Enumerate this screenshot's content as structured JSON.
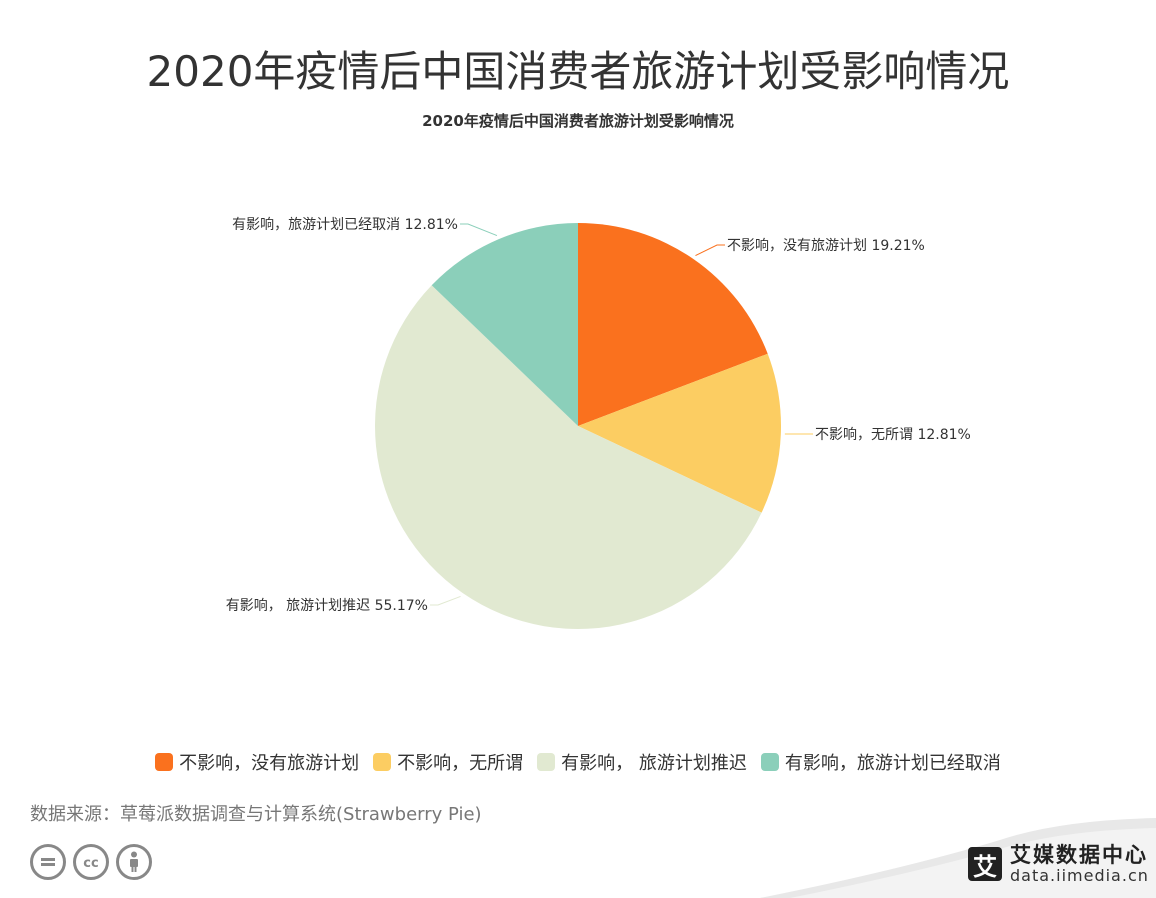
{
  "page": {
    "title": "2020年疫情后中国消费者旅游计划受影响情况",
    "source": "数据来源：草莓派数据调查与计算系统(Strawberry Pie)",
    "cc_icons": [
      "equals-icon",
      "cc-icon",
      "person-icon"
    ]
  },
  "brand": {
    "logo_char": "艾",
    "name": "艾媒数据中心",
    "url": "data.iimedia.cn"
  },
  "chart_data": {
    "type": "pie",
    "title": "2020年疫情后中国消费者旅游计划受影响情况",
    "slices": [
      {
        "label": "不影响，没有旅游计划",
        "value": 19.21,
        "value_label": "19.21%",
        "color": "#fa711e"
      },
      {
        "label": "不影响，无所谓",
        "value": 12.81,
        "value_label": "12.81%",
        "color": "#fccd62"
      },
      {
        "label": "有影响， 旅游计划推迟",
        "value": 55.17,
        "value_label": "55.17%",
        "color": "#e1e9d1"
      },
      {
        "label": "有影响，旅游计划已经取消",
        "value": 12.81,
        "value_label": "12.81%",
        "color": "#8bcfba"
      }
    ],
    "legend_position": "bottom",
    "start": "12 o'clock, clockwise"
  }
}
